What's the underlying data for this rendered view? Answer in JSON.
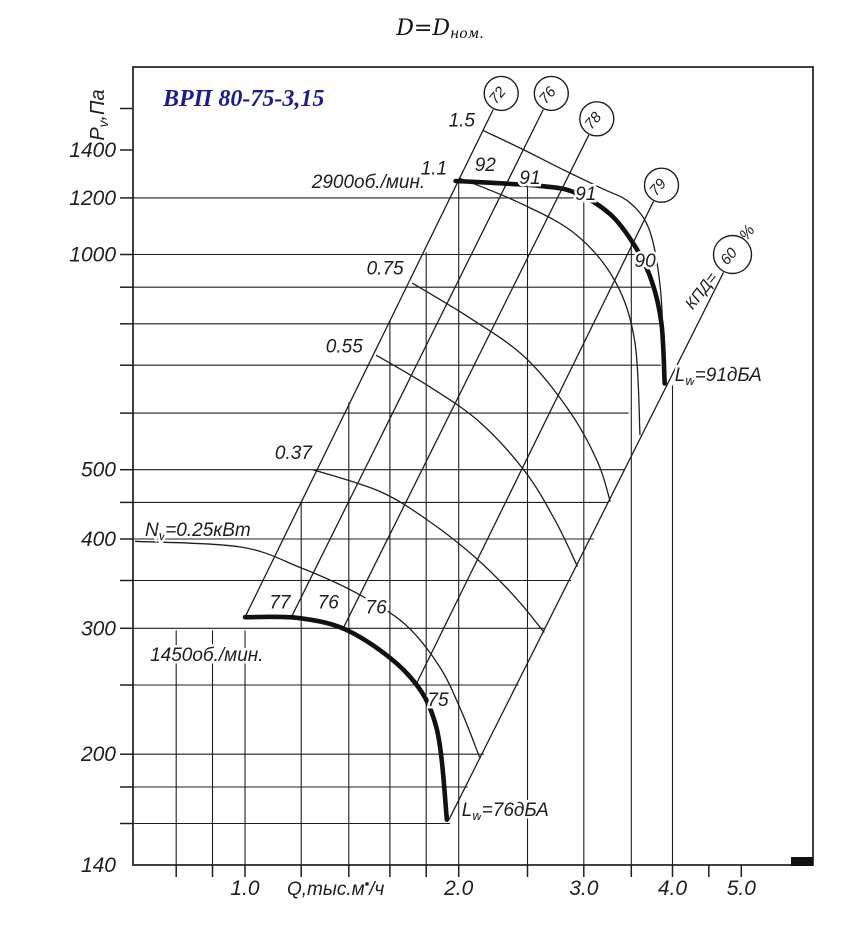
{
  "page": {
    "background": "#ffffff"
  },
  "chart_data": {
    "type": "line",
    "title": "ВРП 80-75-3,15",
    "title_color": "#1b1b96",
    "subtitle": {
      "main": "D=D",
      "sub": "ном."
    },
    "ylabel": {
      "main": "P",
      "sub": "v",
      "rest": ",Па"
    },
    "xlabel": {
      "pre": "Q,тыс.м",
      "sup": "3",
      "post": "/ч"
    },
    "x_axis": {
      "scale": "log",
      "unit": "тыс.м3/ч",
      "labeled_ticks": [
        "1.0",
        "2.0",
        "3.0",
        "4.0",
        "5.0"
      ],
      "minor_ticks": [
        0.8,
        0.9,
        1.0,
        1.2,
        1.4,
        1.6,
        1.8,
        2.0,
        2.5,
        3.0,
        3.5,
        4.0,
        4.5,
        5.0
      ]
    },
    "y_axis": {
      "scale": "log",
      "unit": "Па",
      "labeled_ticks": [
        140,
        200,
        300,
        400,
        500,
        1000,
        1200,
        1400
      ],
      "minor_ticks": [
        160,
        180,
        200,
        250,
        300,
        350,
        400,
        450,
        500,
        600,
        700,
        800,
        900,
        1000,
        1200,
        1400,
        1600
      ]
    },
    "grid": {
      "horizontal": [
        {
          "p": 160,
          "q_end": 1.945
        },
        {
          "p": 180,
          "q_end": 2.06
        },
        {
          "p": 200,
          "q_end": 2.17
        },
        {
          "p": 250,
          "q_end": 2.43
        },
        {
          "p": 300,
          "q_end": 2.65
        },
        {
          "p": 350,
          "q_end": 2.88
        },
        {
          "p": 400,
          "q_end": 3.1
        },
        {
          "p": 450,
          "q_end": 3.25
        },
        {
          "p": 500,
          "q_end": 3.43
        },
        {
          "p": 600,
          "q_end": 3.47
        },
        {
          "p": 700,
          "q_end": 3.85
        },
        {
          "p": 800,
          "q_end": 3.85
        },
        {
          "p": 900,
          "q_end": 3.73
        },
        {
          "p": 1000,
          "q_end": 3.57
        },
        {
          "p": 1200,
          "q_end": 2.94
        }
      ],
      "vertical": [
        {
          "q": 0.8,
          "p_top": 298
        },
        {
          "q": 0.9,
          "p_top": 298
        },
        {
          "q": 1.0,
          "p_top": 298
        },
        {
          "q": 1.2,
          "p_top": 452
        },
        {
          "q": 1.4,
          "p_top": 621
        },
        {
          "q": 1.6,
          "p_top": 809
        },
        {
          "q": 1.8,
          "p_top": 1007
        },
        {
          "q": 2.0,
          "p_top": 1267
        },
        {
          "q": 2.5,
          "p_top": 1253
        },
        {
          "q": 3.0,
          "p_top": 1211
        },
        {
          "q": 3.5,
          "p_top": 1050
        },
        {
          "q": 4.0,
          "p_top": 656
        }
      ]
    },
    "series": [
      {
        "name": "2900об./мин.",
        "rpm": 2900,
        "points": [
          [
            1.98,
            1267
          ],
          [
            2.6,
            1247
          ],
          [
            2.92,
            1220
          ],
          [
            3.27,
            1138
          ],
          [
            3.54,
            1028
          ],
          [
            3.74,
            918
          ],
          [
            3.86,
            800
          ],
          [
            3.9,
            660
          ]
        ],
        "label_at": {
          "q": 1.794,
          "p": 1267,
          "align": "end"
        }
      },
      {
        "name": "1450об./мин.",
        "rpm": 1450,
        "points": [
          [
            1.0,
            311
          ],
          [
            1.195,
            310
          ],
          [
            1.414,
            296
          ],
          [
            1.7,
            258
          ],
          [
            1.86,
            218
          ],
          [
            1.925,
            162
          ]
        ],
        "label_at": {
          "q": 0.735,
          "p": 276,
          "align": "start"
        }
      }
    ],
    "power_curves": [
      {
        "label": "1.5",
        "points": [
          [
            2.16,
            1492
          ],
          [
            2.44,
            1409
          ],
          [
            2.78,
            1320
          ],
          [
            3.17,
            1239
          ],
          [
            3.49,
            1180
          ],
          [
            3.72,
            1075
          ],
          [
            3.85,
            886
          ],
          [
            3.9,
            656
          ]
        ],
        "label_at": {
          "q": 2.02,
          "p": 1540,
          "align": "middle"
        }
      },
      {
        "label": "1.1",
        "points": [
          [
            2.0,
            1280
          ],
          [
            2.44,
            1180
          ],
          [
            2.92,
            1068
          ],
          [
            3.32,
            918
          ],
          [
            3.54,
            755
          ],
          [
            3.6,
            559
          ]
        ],
        "label_at": {
          "q": 1.845,
          "p": 1320,
          "align": "middle"
        }
      },
      {
        "label": "0.75",
        "points": [
          [
            1.72,
            912
          ],
          [
            2.07,
            816
          ],
          [
            2.48,
            718
          ],
          [
            2.87,
            602
          ],
          [
            3.14,
            512
          ],
          [
            3.27,
            451
          ]
        ],
        "label_at": {
          "q": 1.575,
          "p": 956,
          "align": "middle"
        }
      },
      {
        "label": "0.55",
        "points": [
          [
            1.53,
            723
          ],
          [
            1.82,
            653
          ],
          [
            2.14,
            583
          ],
          [
            2.48,
            497
          ],
          [
            2.74,
            423
          ],
          [
            2.94,
            366
          ]
        ],
        "label_at": {
          "q": 1.38,
          "p": 744,
          "align": "middle"
        }
      },
      {
        "label": "0.37",
        "points": [
          [
            1.247,
            500
          ],
          [
            1.55,
            466
          ],
          [
            1.82,
            423
          ],
          [
            2.11,
            377
          ],
          [
            2.4,
            332
          ],
          [
            2.64,
            296
          ]
        ],
        "label_at": {
          "q": 1.17,
          "p": 528,
          "align": "middle"
        }
      },
      {
        "label": "0.25",
        "label_parts": {
          "main": "N",
          "sub": "v",
          "rest": "=0.25кВт"
        },
        "points": [
          [
            0.7,
            397
          ],
          [
            0.984,
            390
          ],
          [
            1.195,
            365
          ],
          [
            1.428,
            337
          ],
          [
            1.68,
            304
          ],
          [
            1.88,
            265
          ],
          [
            2.02,
            229
          ],
          [
            2.14,
            198
          ]
        ],
        "label_at": {
          "q": 0.723,
          "p": 412,
          "align": "start"
        }
      }
    ],
    "efficiency_lines": [
      {
        "value": "72",
        "circle": {
          "q": 2.295,
          "p": 1680
        },
        "end": {
          "q": 1.0,
          "p": 311
        }
      },
      {
        "value": "76",
        "circle": {
          "q": 2.7,
          "p": 1680
        },
        "end": {
          "q": 1.164,
          "p": 312
        }
      },
      {
        "value": "78",
        "circle": {
          "q": 3.13,
          "p": 1548
        },
        "end": {
          "q": 1.37,
          "p": 298
        }
      },
      {
        "value": "79",
        "circle": {
          "q": 3.86,
          "p": 1250
        },
        "end": {
          "q": 1.74,
          "p": 250
        }
      },
      {
        "value": "60",
        "circle": {
          "q": 4.86,
          "p": 1000
        },
        "end": {
          "q": 1.937,
          "p": 162
        },
        "prefix": "КПД=",
        "suffix": "%"
      }
    ],
    "noise_labels": [
      {
        "main": "L",
        "sub": "w",
        "rest": "=91дБА",
        "at": {
          "q": 4.03,
          "p": 678
        }
      },
      {
        "main": "L",
        "sub": "w",
        "rest": "=76дБА",
        "at": {
          "q": 2.02,
          "p": 167
        }
      }
    ],
    "curve_annotations": [
      {
        "text": "92",
        "q": 2.18,
        "p": 1335
      },
      {
        "text": "91",
        "q": 2.52,
        "p": 1280
      },
      {
        "text": "91",
        "q": 3.02,
        "p": 1215
      },
      {
        "text": "90",
        "q": 3.66,
        "p": 980
      },
      {
        "text": "77",
        "q": 1.12,
        "p": 326
      },
      {
        "text": "76",
        "q": 1.31,
        "p": 326
      },
      {
        "text": "76",
        "q": 1.53,
        "p": 321
      },
      {
        "text": "75",
        "q": 1.87,
        "p": 238
      }
    ]
  }
}
